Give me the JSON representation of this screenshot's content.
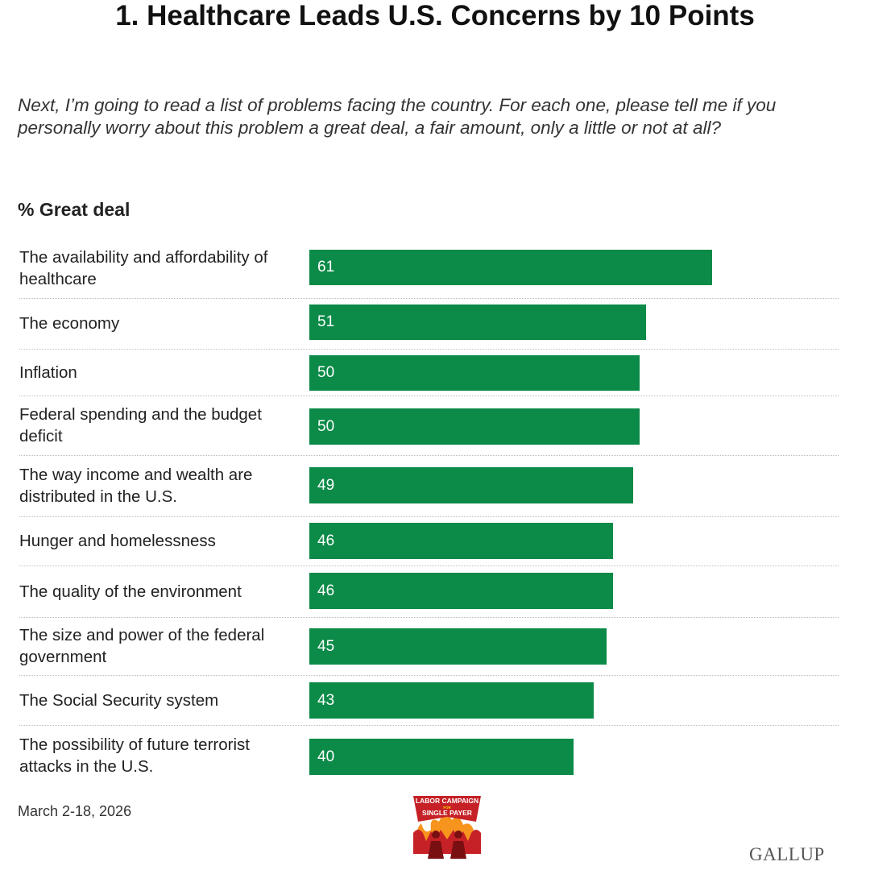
{
  "title": "1. Healthcare Leads U.S. Concerns by 10 Points",
  "question": "Next, I’m going to read a list of problems facing the country. For each one, please tell me if you personally worry about this problem a great deal, a fair amount, only a little or not at all?",
  "metric_label": "% Great deal",
  "date": "March 2-18, 2026",
  "source": "GALLUP",
  "logo": {
    "line1": "LABOR CAMPAIGN",
    "line2": "FOR",
    "line3": "SINGLE PAYER"
  },
  "colors": {
    "bar": "#0b8a48",
    "text": "#222222"
  },
  "chart_data": {
    "type": "bar",
    "orientation": "horizontal",
    "categories": [
      "The availability and affordability of healthcare",
      "The economy",
      "Inflation",
      "Federal spending and the budget deficit",
      "The way income and wealth are distributed in the U.S.",
      "Hunger and homelessness",
      "The quality of the environment",
      "The size and power of the federal government",
      "The Social Security system",
      "The possibility of future terrorist attacks in the U.S."
    ],
    "values": [
      61,
      51,
      50,
      50,
      49,
      46,
      46,
      45,
      43,
      40
    ],
    "xlabel": "",
    "ylabel": "% Great deal",
    "xlim": [
      0,
      80
    ],
    "grid": false,
    "legend": "none"
  }
}
